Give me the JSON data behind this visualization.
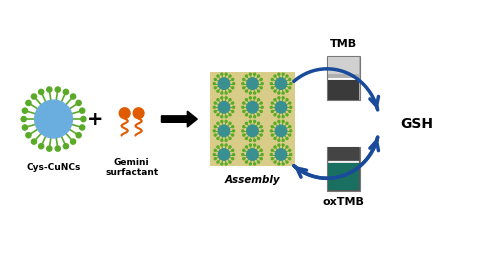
{
  "bg_color": "#ffffff",
  "labels": {
    "cys_cuncs": "Cys-CuNCs",
    "gemini": "Gemini\nsurfactant",
    "assembly": "Assembly",
    "tmb": "TMB",
    "oxtmb": "oxTMB",
    "gsh": "GSH"
  },
  "colors": {
    "blue_circle": "#6aaee0",
    "green_spikes": "#5aaa28",
    "green_dot": "#5aaa28",
    "orange_gemini": "#e05a00",
    "teal_cluster": "#3a9090",
    "arrow_blue": "#1a4a9a",
    "assembly_bg": "#d8cc88",
    "tmb_top": "#999999",
    "tmb_mid": "#aaaaaa",
    "tmb_bot": "#444444",
    "oxtmb_top": "#555555",
    "oxtmb_bot": "#1a7060"
  },
  "figsize": [
    5.0,
    2.64
  ],
  "dpi": 100
}
